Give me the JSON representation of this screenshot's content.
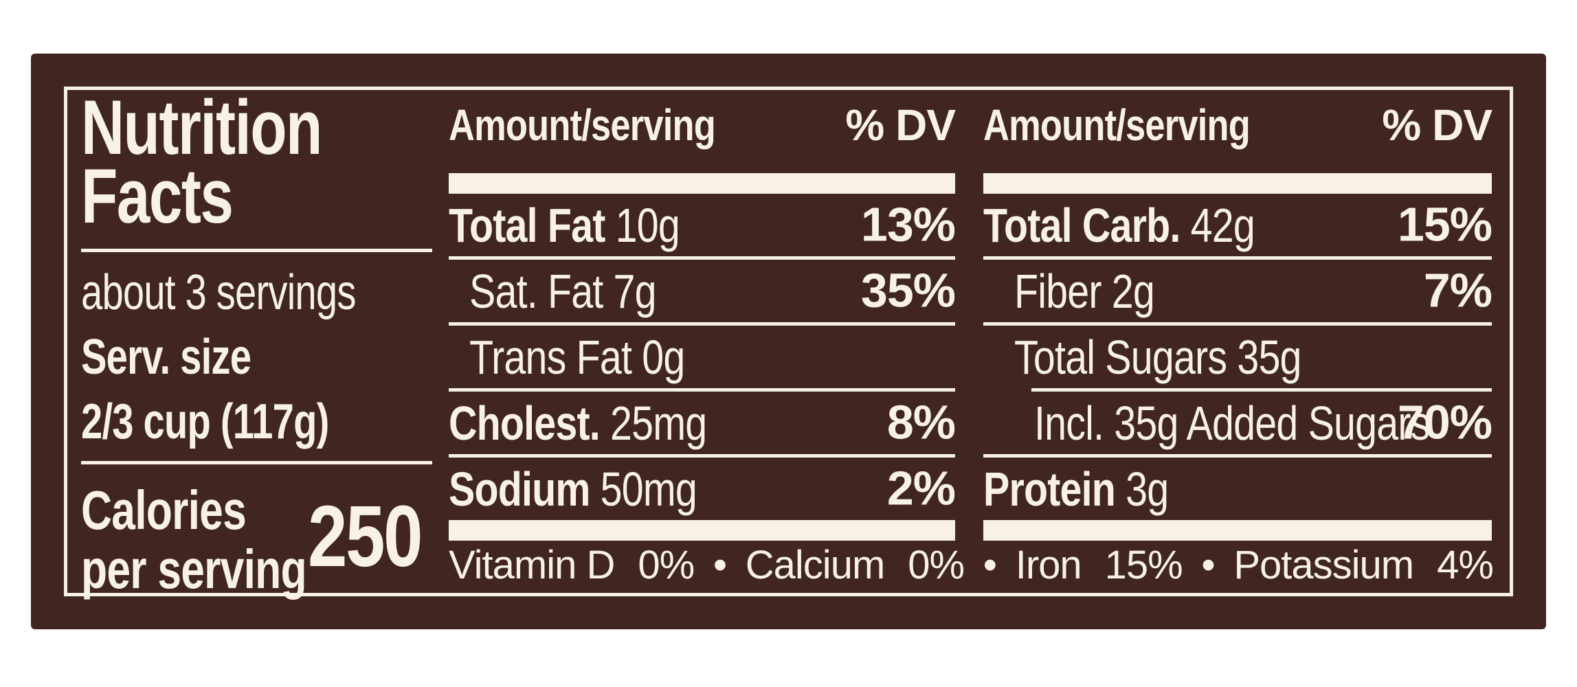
{
  "label": {
    "background_color": "#402523",
    "text_color": "#F7F1E7",
    "title": {
      "line1": "Nutrition",
      "line2": "Facts"
    },
    "servings_text": "about 3 servings",
    "serving_size": {
      "label": "Serv. size",
      "value": "2/3 cup (117g)"
    },
    "calories": {
      "label_line1": "Calories",
      "label_line2": "per serving",
      "value": "250"
    },
    "columns": [
      {
        "header": {
          "amount_label": "Amount/serving",
          "dv_label": "% DV"
        },
        "rows": [
          {
            "bold": "Total Fat",
            "rest": " 10g",
            "dv": "13%"
          },
          {
            "bold": "",
            "rest": "Sat. Fat 7g",
            "dv": "35%"
          },
          {
            "bold": "",
            "rest": "Trans Fat 0g",
            "dv": ""
          },
          {
            "bold": "Cholest.",
            "rest": " 25mg",
            "dv": "8%"
          },
          {
            "bold": "Sodium",
            "rest": " 50mg",
            "dv": "2%"
          }
        ]
      },
      {
        "header": {
          "amount_label": "Amount/serving",
          "dv_label": "% DV"
        },
        "rows": [
          {
            "bold": "Total Carb.",
            "rest": " 42g",
            "dv": "15%"
          },
          {
            "bold": "",
            "rest": "Fiber 2g",
            "dv": "7%"
          },
          {
            "bold": "",
            "rest": "Total Sugars 35g",
            "dv": ""
          },
          {
            "bold": "",
            "rest": "Incl. 35g Added Sugars",
            "dv": "70%"
          },
          {
            "bold": "Protein",
            "rest": " 3g",
            "dv": ""
          }
        ]
      }
    ],
    "micronutrients": {
      "separator": "•",
      "items": [
        {
          "name": "Vitamin D",
          "value": "0%"
        },
        {
          "name": "Calcium",
          "value": "0%"
        },
        {
          "name": "Iron",
          "value": "15%"
        },
        {
          "name": "Potassium",
          "value": "4%"
        }
      ]
    }
  }
}
